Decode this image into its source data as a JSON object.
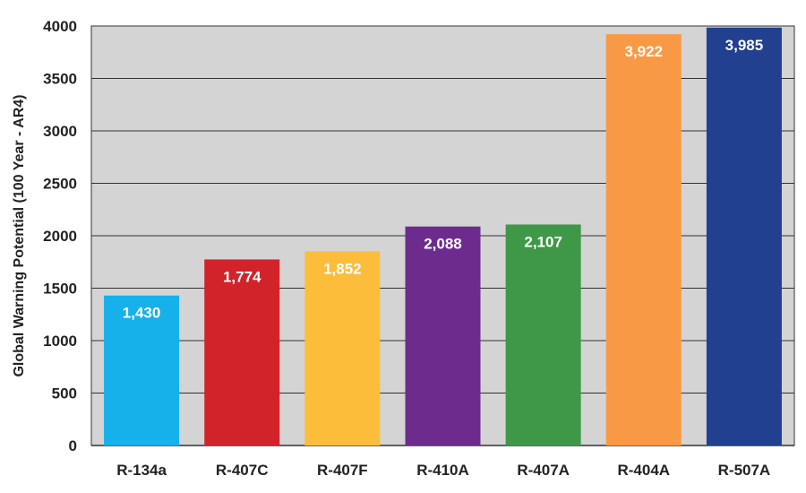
{
  "chart_data": {
    "type": "bar",
    "title": "",
    "xlabel": "",
    "ylabel": "Global Warning Potential (100 Year - AR4)",
    "ylim": [
      0,
      4000
    ],
    "yticks": [
      0,
      500,
      1000,
      1500,
      2000,
      2500,
      3000,
      3500,
      4000
    ],
    "ytick_labels": [
      "0",
      "500",
      "1000",
      "1500",
      "2000",
      "2500",
      "3000",
      "3500",
      "4000"
    ],
    "grid": true,
    "legend": "none",
    "plot_background": "#d4d4d4",
    "categories": [
      "R-134a",
      "R-407C",
      "R-407F",
      "R-410A",
      "R-407A",
      "R-404A",
      "R-507A"
    ],
    "values": [
      1430,
      1774,
      1852,
      2088,
      2107,
      3922,
      3985
    ],
    "data_labels": [
      "1,430",
      "1,774",
      "1,852",
      "2,088",
      "2,107",
      "3,922",
      "3,985"
    ],
    "colors": [
      "#16b1ea",
      "#d2232a",
      "#fcbd3b",
      "#6e2b8e",
      "#3e9847",
      "#f89a45",
      "#21408f"
    ]
  }
}
